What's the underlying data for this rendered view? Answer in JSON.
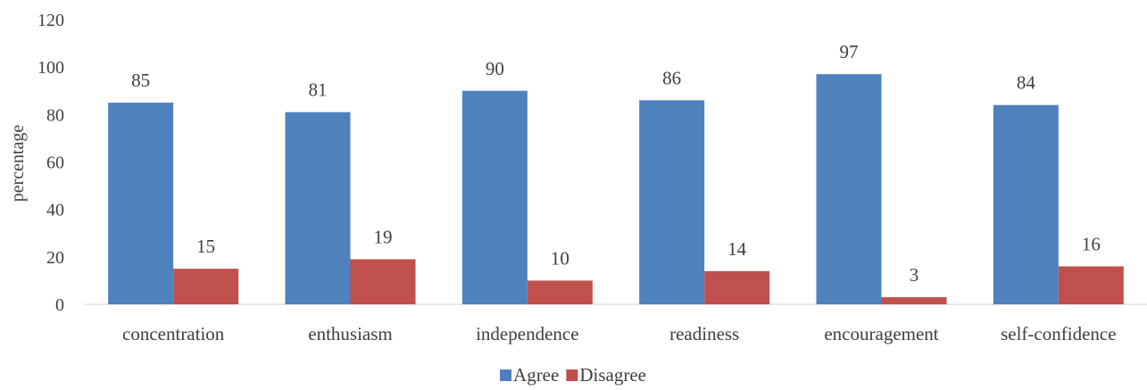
{
  "chart_data": {
    "type": "bar",
    "title": "",
    "xlabel": "",
    "ylabel": "percentage",
    "ylim": [
      0,
      120
    ],
    "yticks": [
      0,
      20,
      40,
      60,
      80,
      100,
      120
    ],
    "grid": false,
    "legend_position": "bottom",
    "categories": [
      "concentration",
      "enthusiasm",
      "independence",
      "readiness",
      "encouragement",
      "self-confidence"
    ],
    "series": [
      {
        "name": "Agree",
        "color": "#4F81BD",
        "values": [
          85,
          81,
          90,
          86,
          97,
          84
        ]
      },
      {
        "name": "Disagree",
        "color": "#C0504D",
        "values": [
          15,
          19,
          10,
          14,
          3,
          16
        ]
      }
    ]
  }
}
